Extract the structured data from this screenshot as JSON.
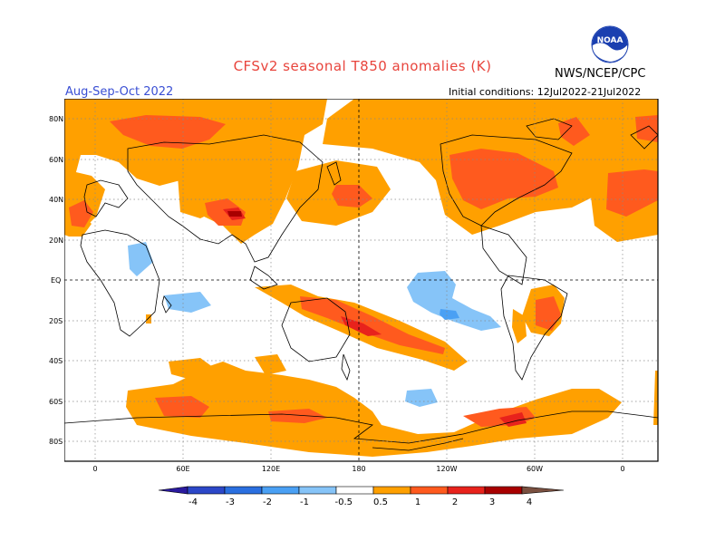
{
  "header": {
    "title": "CFSv2 seasonal T850 anomalies (K)",
    "period": "Aug-Sep-Oct 2022",
    "initial_conditions": "Initial conditions: 12Jul2022-21Jul2022",
    "agency": "NWS/NCEP/CPC",
    "logo_text": "NOAA"
  },
  "map": {
    "lat_ticks": [
      "80N",
      "60N",
      "40N",
      "20N",
      "EQ",
      "20S",
      "40S",
      "60S",
      "80S"
    ],
    "lon_ticks": [
      "0",
      "60E",
      "120E",
      "180",
      "120W",
      "60W",
      "0"
    ]
  },
  "legend": {
    "labels": [
      "-4",
      "-3",
      "-2",
      "-1",
      "-0.5",
      "0.5",
      "1",
      "2",
      "3",
      "4"
    ],
    "colors": {
      "lt_neg4": "#2a1a9e",
      "neg4_neg3": "#2c47c8",
      "neg3_neg2": "#2a6fe0",
      "neg2_neg1": "#4aa0f4",
      "neg1_neg05": "#86c4f8",
      "neutral": "#ffffff",
      "p05_1": "#ffa000",
      "p1_2": "#ff5a1e",
      "p2_3": "#e8221c",
      "p3_4": "#a80000",
      "p4_5": "#c8a090",
      "gt5": "#7a5040"
    }
  }
}
